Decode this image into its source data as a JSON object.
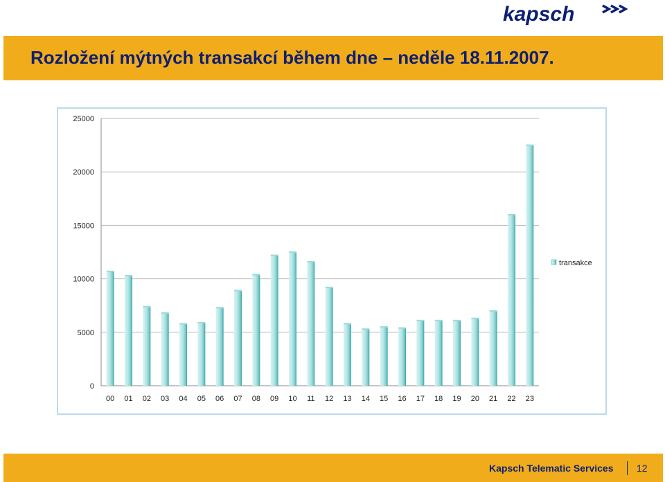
{
  "header": {
    "logo_text": "kapsch",
    "title": "Rozložení mýtných transakcí během dne – neděle 18.11.2007."
  },
  "footer": {
    "company": "Kapsch Telematic Services",
    "page_number": "12"
  },
  "colors": {
    "brand_orange": "#f1ac1b",
    "title_navy": "#0c1f73",
    "bar_light": "#d8f2f2",
    "bar_mid": "#8fd3d3",
    "bar_dark": "#3aa3a6",
    "gridline": "#b7b7b7"
  },
  "chart_data": {
    "type": "bar",
    "categories": [
      "00",
      "01",
      "02",
      "03",
      "04",
      "05",
      "06",
      "07",
      "08",
      "09",
      "10",
      "11",
      "12",
      "13",
      "14",
      "15",
      "16",
      "17",
      "18",
      "19",
      "20",
      "21",
      "22",
      "23"
    ],
    "series": [
      {
        "name": "transakce",
        "values": [
          10700,
          10300,
          7400,
          6800,
          5800,
          5900,
          7300,
          8900,
          10400,
          12200,
          12500,
          11600,
          9200,
          5800,
          5300,
          5500,
          5400,
          6100,
          6100,
          6100,
          6300,
          7000,
          16000,
          22500
        ]
      }
    ],
    "ylim": [
      0,
      25000
    ],
    "yticks": [
      "0",
      "5000",
      "10000",
      "15000",
      "20000",
      "25000"
    ],
    "grid": true,
    "legend_position": "right"
  }
}
